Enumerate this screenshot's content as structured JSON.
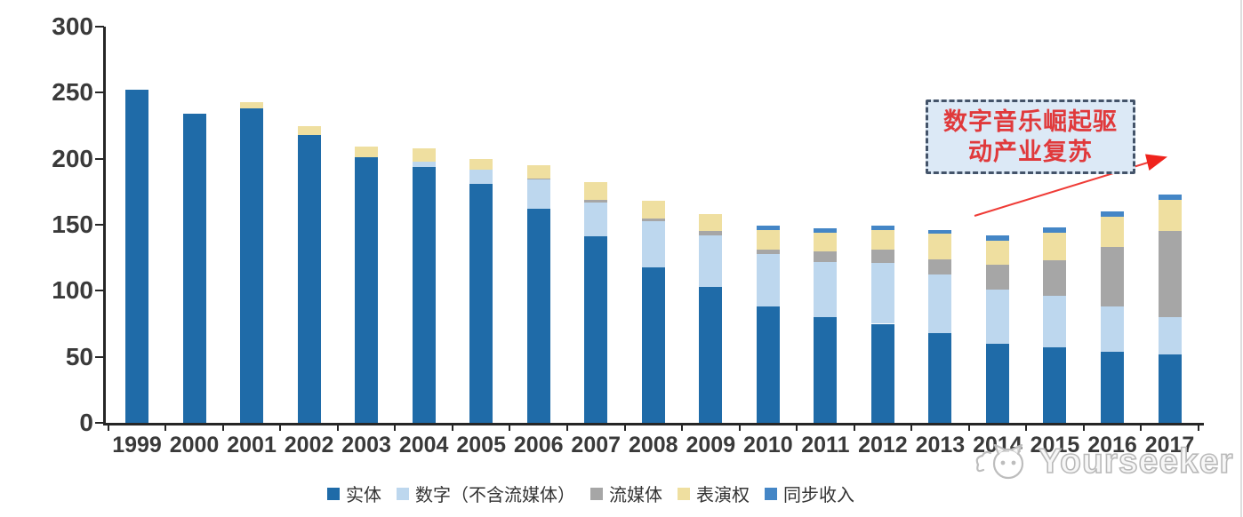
{
  "watermark": {
    "brand": "Yourseeker",
    "logo": "yourseeker-cat-logo"
  },
  "annotation": {
    "line1": "数字音乐崛起驱",
    "line2": "动产业复苏"
  },
  "chart_data": {
    "type": "bar",
    "stacked": true,
    "title": "",
    "xlabel": "",
    "ylabel": "",
    "categories": [
      "1999",
      "2000",
      "2001",
      "2002",
      "2003",
      "2004",
      "2005",
      "2006",
      "2007",
      "2008",
      "2009",
      "2010",
      "2011",
      "2012",
      "2013",
      "2014",
      "2015",
      "2016",
      "2017"
    ],
    "series": [
      {
        "name": "实体",
        "color": "#1f6ba8",
        "values": [
          252,
          234,
          238,
          218,
          201,
          194,
          181,
          162,
          141,
          118,
          103,
          88,
          80,
          75,
          68,
          60,
          57,
          54,
          52
        ]
      },
      {
        "name": "数字（不含流媒体）",
        "color": "#bdd7ee",
        "values": [
          0,
          0,
          0,
          0,
          0,
          4,
          11,
          22,
          26,
          35,
          39,
          40,
          42,
          46,
          44,
          41,
          39,
          34,
          28
        ]
      },
      {
        "name": "流媒体",
        "color": "#a6a6a6",
        "values": [
          0,
          0,
          0,
          0,
          0,
          0,
          0,
          1,
          2,
          2,
          3,
          3,
          8,
          10,
          12,
          19,
          27,
          45,
          65
        ]
      },
      {
        "name": "表演权",
        "color": "#efdfa0",
        "values": [
          0,
          0,
          5,
          7,
          8,
          10,
          8,
          10,
          13,
          13,
          13,
          15,
          14,
          15,
          19,
          18,
          21,
          23,
          24
        ]
      },
      {
        "name": "同步收入",
        "color": "#4486c6",
        "values": [
          0,
          0,
          0,
          0,
          0,
          0,
          0,
          0,
          0,
          0,
          0,
          3,
          3,
          3,
          3,
          4,
          4,
          4,
          4
        ]
      }
    ],
    "totals": [
      252,
      234,
      243,
      225,
      209,
      208,
      200,
      195,
      182,
      168,
      158,
      149,
      147,
      149,
      146,
      142,
      148,
      160,
      173
    ],
    "ylim": [
      0,
      300
    ],
    "y_ticks": [
      0,
      50,
      100,
      150,
      200,
      250,
      300
    ],
    "grid": false,
    "legend_position": "bottom"
  }
}
